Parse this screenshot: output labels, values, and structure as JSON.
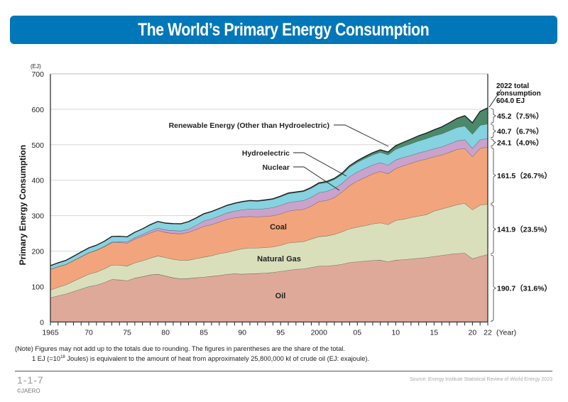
{
  "header": {
    "title": "The World’s Primary Energy Consumption"
  },
  "chart_data": {
    "type": "area",
    "stacked": true,
    "title": "The World’s Primary Energy Consumption",
    "ylabel": "Primary Energy Consumption",
    "yunit": "(EJ)",
    "xlabel": "(Year)",
    "ylim": [
      0,
      700
    ],
    "yticks": [
      0,
      100,
      200,
      300,
      400,
      500,
      600,
      700
    ],
    "xlim": [
      1965,
      2022
    ],
    "xtick_labels": [
      {
        "year": 1965,
        "label": "1965"
      },
      {
        "year": 1970,
        "label": "70"
      },
      {
        "year": 1975,
        "label": "75"
      },
      {
        "year": 1980,
        "label": "80"
      },
      {
        "year": 1985,
        "label": "85"
      },
      {
        "year": 1990,
        "label": "90"
      },
      {
        "year": 1995,
        "label": "95"
      },
      {
        "year": 2000,
        "label": "2000"
      },
      {
        "year": 2005,
        "label": "05"
      },
      {
        "year": 2010,
        "label": "10"
      },
      {
        "year": 2015,
        "label": "15"
      },
      {
        "year": 2020,
        "label": "20"
      },
      {
        "year": 2022,
        "label": "22"
      }
    ],
    "grid": true,
    "x": [
      1965,
      1966,
      1967,
      1968,
      1969,
      1970,
      1971,
      1972,
      1973,
      1974,
      1975,
      1976,
      1977,
      1978,
      1979,
      1980,
      1981,
      1982,
      1983,
      1984,
      1985,
      1986,
      1987,
      1988,
      1989,
      1990,
      1991,
      1992,
      1993,
      1994,
      1995,
      1996,
      1997,
      1998,
      1999,
      2000,
      2001,
      2002,
      2003,
      2004,
      2005,
      2006,
      2007,
      2008,
      2009,
      2010,
      2011,
      2012,
      2013,
      2014,
      2015,
      2016,
      2017,
      2018,
      2019,
      2020,
      2021,
      2022
    ],
    "series": [
      {
        "name": "Oil",
        "color": "#dfa99a",
        "values": [
          68.6,
          74,
          79,
          86,
          93,
          100,
          104,
          111,
          120,
          119,
          116.6,
          124,
          128,
          133,
          135,
          130,
          125,
          122,
          123,
          125,
          126.6,
          129,
          131,
          134.6,
          136,
          135,
          136,
          137,
          138,
          140,
          143,
          146,
          149,
          150,
          154,
          158,
          158,
          160,
          163,
          168,
          170,
          172,
          174,
          174.6,
          170,
          174.6,
          176,
          178,
          180,
          182,
          185,
          188,
          191,
          193,
          194.6,
          178.6,
          185,
          190.7
        ]
      },
      {
        "name": "Natural Gas",
        "color": "#d9dfbb",
        "values": [
          22,
          24,
          26,
          29,
          32,
          35,
          37,
          39,
          41,
          41.5,
          41.5,
          43,
          45,
          47,
          51.6,
          52,
          52,
          52,
          51.6,
          54,
          56.5,
          58,
          62,
          62,
          66,
          71.6,
          73,
          72,
          72,
          72,
          73.6,
          77,
          76,
          77,
          80,
          83,
          85,
          87,
          91.6,
          95,
          98,
          100,
          103,
          105.4,
          105,
          112,
          114,
          117,
          119,
          121,
          128,
          131,
          134,
          138,
          140.4,
          138,
          145,
          141.9
        ]
      },
      {
        "name": "Coal",
        "color": "#f2a57c",
        "values": [
          58,
          58,
          57,
          58,
          59,
          60,
          61,
          62,
          63,
          64,
          64.5,
          67,
          69,
          71,
          72,
          71,
          73,
          75,
          78.5,
          82,
          87,
          88,
          89,
          93,
          92,
          90,
          89,
          88,
          88,
          88,
          88.4,
          90,
          91,
          91,
          93,
          99,
          100,
          104,
          112,
          122,
          130,
          136,
          141,
          145,
          143.6,
          146.4,
          151,
          153,
          156,
          157,
          153.6,
          152,
          154,
          156,
          155,
          150,
          160,
          161.5
        ]
      },
      {
        "name": "Nuclear",
        "color": "#c9a3cc",
        "values": [
          0.2,
          0.3,
          0.4,
          0.5,
          0.6,
          0.8,
          1,
          1.2,
          1.5,
          2,
          3.5,
          4,
          5,
          6,
          6.5,
          7,
          8,
          8,
          8.5,
          12,
          15,
          16,
          17,
          18,
          19,
          20,
          21,
          21,
          22,
          23,
          24,
          24,
          24,
          25,
          25,
          25,
          25.5,
          25.5,
          24.5,
          25.5,
          25.5,
          25.5,
          25,
          24.8,
          24,
          24.4,
          23.5,
          22,
          22,
          22.5,
          22.6,
          23,
          23.5,
          24,
          24.4,
          23.4,
          24.5,
          24.1
        ]
      },
      {
        "name": "Hydroelectric",
        "color": "#85d2e0",
        "values": [
          10,
          10.5,
          11,
          11.5,
          12.5,
          13,
          13.5,
          14,
          15.5,
          15,
          14,
          15,
          15.5,
          17,
          18,
          18.5,
          19,
          19.5,
          21,
          20,
          19.5,
          20,
          20.5,
          20.5,
          21,
          22,
          22.5,
          22.5,
          23,
          23,
          24.6,
          25,
          25,
          25,
          25.5,
          25,
          25,
          25.5,
          25,
          26.5,
          27,
          28,
          28.5,
          29,
          29,
          30,
          31,
          33,
          34,
          35,
          36,
          37,
          37.5,
          38,
          38.6,
          40,
          40.5,
          40.7
        ]
      },
      {
        "name": "Renewable Energy (Other than Hydroelectric)",
        "color": "#4a8a6a",
        "values": [
          0.2,
          0.2,
          0.2,
          0.2,
          0.2,
          0.2,
          0.2,
          0.3,
          0.3,
          0.3,
          0.3,
          0.3,
          0.3,
          0.4,
          0.5,
          0.5,
          0.5,
          0.6,
          0.6,
          0.7,
          0.8,
          0.8,
          0.9,
          1,
          1.1,
          1.2,
          1.2,
          1.3,
          1.4,
          1.5,
          1.6,
          1.7,
          1.8,
          1.9,
          2.2,
          2.6,
          2.8,
          3.1,
          3.5,
          4,
          4.6,
          5.3,
          6.1,
          7,
          8,
          10,
          11.5,
          13,
          14.5,
          15.5,
          17,
          19.5,
          22,
          25.5,
          29,
          32,
          39,
          45.2
        ]
      }
    ],
    "layer_labels": [
      {
        "series": "Oil",
        "text": "Oil"
      },
      {
        "series": "Natural Gas",
        "text": "Natural Gas"
      },
      {
        "series": "Coal",
        "text": "Coal"
      },
      {
        "series": "Nuclear",
        "text": "Nuclear"
      },
      {
        "series": "Hydroelectric",
        "text": "Hydroelectric"
      },
      {
        "series": "Renewable Energy (Other than Hydroelectric)",
        "text": "Renewable Energy (Other than Hydroelectric)"
      }
    ],
    "annotation_total": [
      "2022 total",
      "consumption",
      "604.0 EJ"
    ],
    "annotations_2022": [
      {
        "series": "Renewable Energy (Other than Hydroelectric)",
        "text": "45.2（7.5%）"
      },
      {
        "series": "Hydroelectric",
        "text": "40.7（6.7%）"
      },
      {
        "series": "Nuclear",
        "text": "24.1（4.0%）"
      },
      {
        "series": "Coal",
        "text": "161.5（26.7%）"
      },
      {
        "series": "Natural Gas",
        "text": "141.9（23.5%）"
      },
      {
        "series": "Oil",
        "text": "190.7（31.6%）"
      }
    ]
  },
  "notes": {
    "line1": "(Note) Figures may not add up to the totals due to rounding.  The figures in parentheses are the share of the total.",
    "line2_a": "1 EJ (=10",
    "line2_sup": "18",
    "line2_b": " Joules) is equivalent to the amount of heat from approximately 25,800,000 kℓ  of crude oil (EJ: exajoule)."
  },
  "footer": {
    "page_number": "1-1-7",
    "copyright": "©JAERO",
    "source": "Source: Energy Institute Statistical Review of World Energy 2023"
  }
}
